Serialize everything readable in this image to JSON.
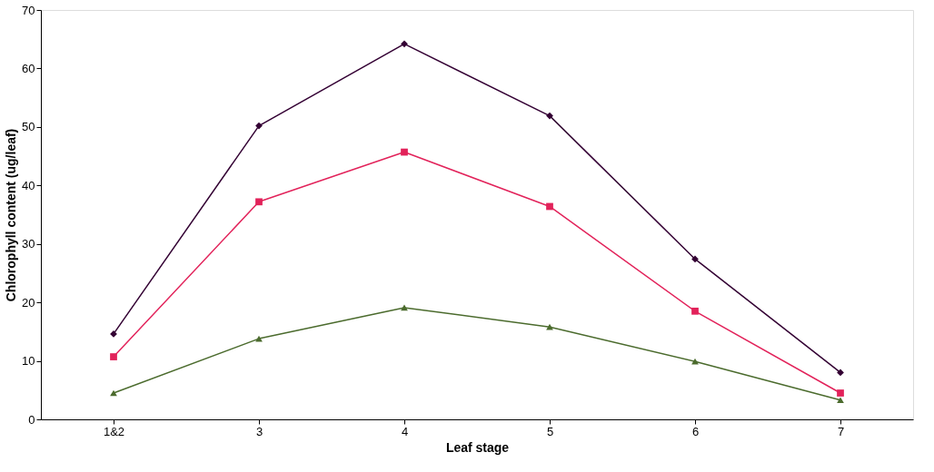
{
  "chart_data": {
    "type": "line",
    "xlabel": "Leaf stage",
    "ylabel": "Chlorophyll content (ug/leaf)",
    "categories": [
      "1&2",
      "3",
      "4",
      "5",
      "6",
      "7"
    ],
    "series": [
      {
        "color": "#330033",
        "marker": "diamond",
        "values": [
          14.6,
          50.2,
          64.2,
          51.9,
          27.4,
          8.0
        ]
      },
      {
        "color": "#e2225a",
        "marker": "square",
        "values": [
          10.7,
          37.2,
          45.7,
          36.4,
          18.5,
          4.5
        ]
      },
      {
        "color": "#4b6b2d",
        "marker": "triangle",
        "values": [
          4.5,
          13.8,
          19.1,
          15.8,
          9.9,
          3.3
        ]
      }
    ],
    "ylim": [
      0,
      70
    ],
    "yticks": [
      0,
      10,
      20,
      30,
      40,
      50,
      60,
      70
    ],
    "grid": false,
    "line_style": "solid"
  }
}
